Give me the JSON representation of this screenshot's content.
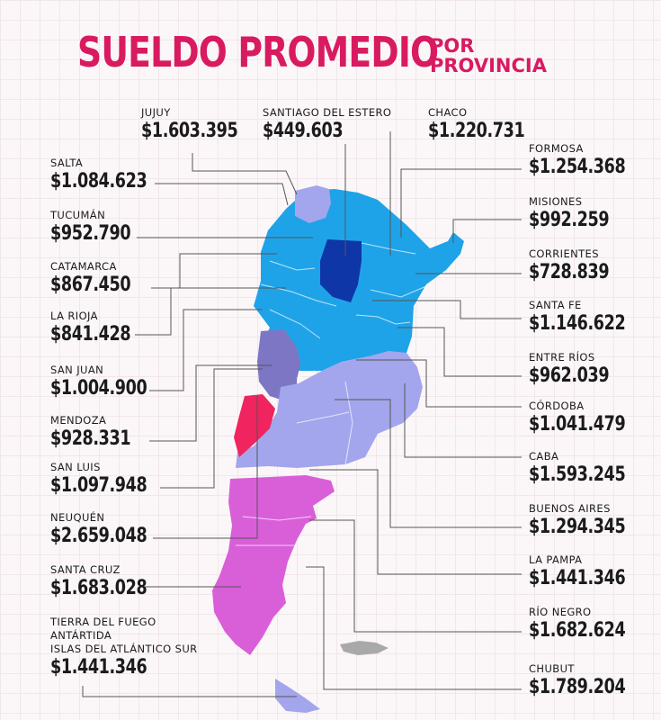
{
  "header": {
    "title": "SUELDO PROMEDIO",
    "subtitle_line1": "POR",
    "subtitle_line2": "PROVINCIA"
  },
  "colors": {
    "title": "#d81b60",
    "tier_light_blue": "#1fa3e8",
    "tier_dark_blue": "#0f36a6",
    "tier_lavender": "#a3a6ec",
    "tier_slate": "#7c76c4",
    "tier_red": "#f0245e",
    "tier_magenta": "#d95fd9",
    "tier_pink": "#ea5ccf",
    "leader_lines": "#555555",
    "islands": "#a9a9a9"
  },
  "provinces": [
    {
      "id": "jujuy",
      "name": "JUJUY",
      "salary": "$1.603.395",
      "tier": "lavender"
    },
    {
      "id": "santiago",
      "name": "SANTIAGO DEL ESTERO",
      "salary": "$449.603",
      "tier": "dark_blue"
    },
    {
      "id": "chaco",
      "name": "CHACO",
      "salary": "$1.220.731",
      "tier": "light_blue"
    },
    {
      "id": "salta",
      "name": "SALTA",
      "salary": "$1.084.623",
      "tier": "light_blue"
    },
    {
      "id": "formosa",
      "name": "FORMOSA",
      "salary": "$1.254.368",
      "tier": "light_blue"
    },
    {
      "id": "tucuman",
      "name": "TUCUMÁN",
      "salary": "$952.790",
      "tier": "light_blue"
    },
    {
      "id": "misiones",
      "name": "MISIONES",
      "salary": "$992.259",
      "tier": "light_blue"
    },
    {
      "id": "catamarca",
      "name": "CATAMARCA",
      "salary": "$867.450",
      "tier": "light_blue"
    },
    {
      "id": "corrientes",
      "name": "CORRIENTES",
      "salary": "$728.839",
      "tier": "light_blue"
    },
    {
      "id": "larioja",
      "name": "LA RIOJA",
      "salary": "$841.428",
      "tier": "light_blue"
    },
    {
      "id": "santafe",
      "name": "SANTA FE",
      "salary": "$1.146.622",
      "tier": "light_blue"
    },
    {
      "id": "sanjuan",
      "name": "SAN JUAN",
      "salary": "$1.004.900",
      "tier": "slate"
    },
    {
      "id": "entrerios",
      "name": "ENTRE RÍOS",
      "salary": "$962.039",
      "tier": "light_blue"
    },
    {
      "id": "cordoba",
      "name": "CÓRDOBA",
      "salary": "$1.041.479",
      "tier": "light_blue"
    },
    {
      "id": "mendoza",
      "name": "MENDOZA",
      "salary": "$928.331",
      "tier": "red"
    },
    {
      "id": "caba",
      "name": "CABA",
      "salary": "$1.593.245",
      "tier": "lavender"
    },
    {
      "id": "sanluis",
      "name": "SAN LUIS",
      "salary": "$1.097.948",
      "tier": "lavender"
    },
    {
      "id": "buenosaires",
      "name": "BUENOS AIRES",
      "salary": "$1.294.345",
      "tier": "lavender"
    },
    {
      "id": "neuquen",
      "name": "NEUQUÉN",
      "salary": "$2.659.048",
      "tier": "magenta"
    },
    {
      "id": "lapampa",
      "name": "LA PAMPA",
      "salary": "$1.441.346",
      "tier": "lavender"
    },
    {
      "id": "santacruz",
      "name": "SANTA CRUZ",
      "salary": "$1.683.028",
      "tier": "magenta"
    },
    {
      "id": "rionegro",
      "name": "RÍO NEGRO",
      "salary": "$1.682.624",
      "tier": "magenta"
    },
    {
      "id": "tierradelfuego",
      "name_lines": [
        "TIERRA DEL FUEGO",
        "ANTÁRTIDA",
        "ISLAS DEL ATLÁNTICO SUR"
      ],
      "salary": "$1.441.346",
      "tier": "lavender"
    },
    {
      "id": "chubut",
      "name": "CHUBUT",
      "salary": "$1.789.204",
      "tier": "pink"
    }
  ]
}
